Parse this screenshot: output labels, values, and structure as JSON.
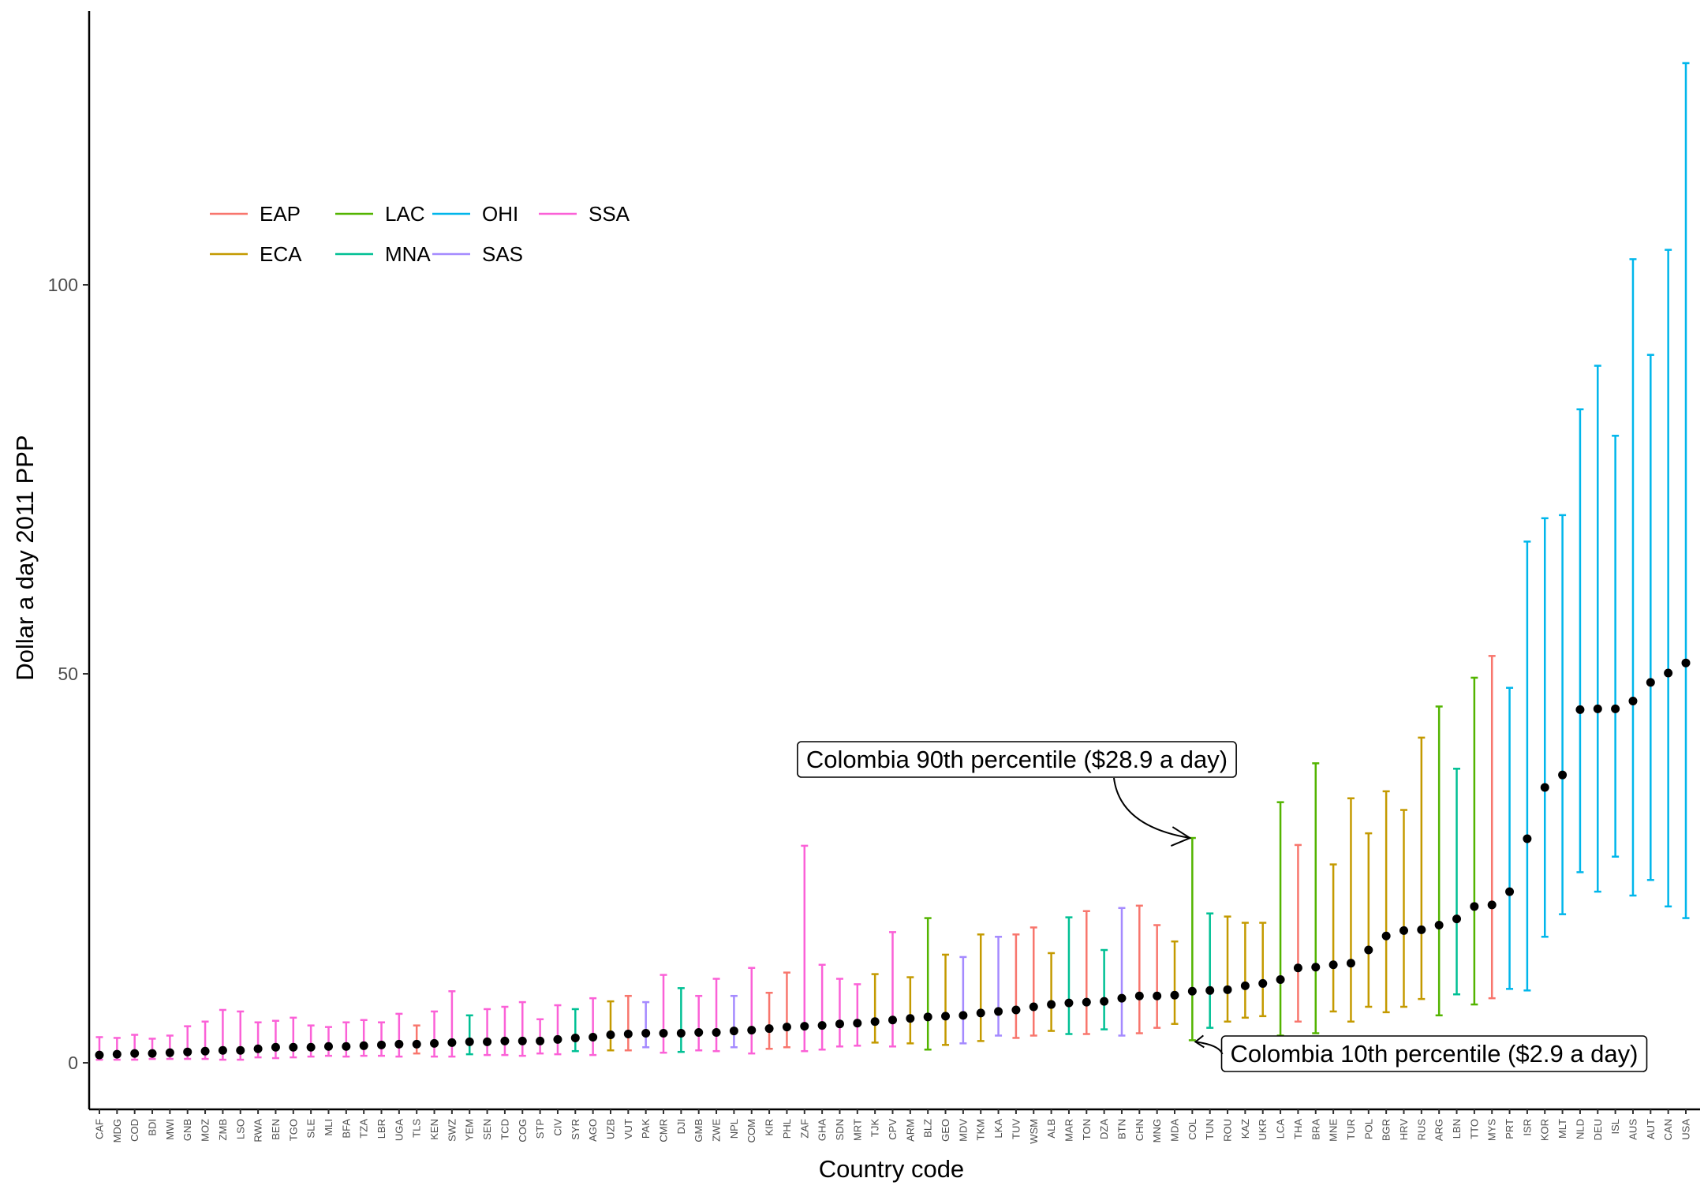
{
  "chart_data": {
    "type": "errorbar",
    "xlabel": "Country code",
    "ylabel": "Dollar a day 2011 PPP",
    "ylim": [
      -6,
      134
    ],
    "yticks": [
      0,
      50,
      100
    ],
    "grid": false,
    "legend_position": "top-left",
    "colors": {
      "EAP": "#F8766D",
      "ECA": "#C49A00",
      "LAC": "#53B400",
      "MNA": "#00C094",
      "OHI": "#00B6EB",
      "SAS": "#A58AFF",
      "SSA": "#FB61D7"
    },
    "legend": [
      {
        "region": "EAP",
        "label": "EAP"
      },
      {
        "region": "LAC",
        "label": "LAC"
      },
      {
        "region": "OHI",
        "label": "OHI"
      },
      {
        "region": "SSA",
        "label": "SSA"
      },
      {
        "region": "ECA",
        "label": "ECA"
      },
      {
        "region": "MNA",
        "label": "MNA"
      },
      {
        "region": "SAS",
        "label": "SAS"
      }
    ],
    "points": [
      {
        "code": "CAF",
        "region": "SSA",
        "median": 1.0,
        "low": 0.4,
        "high": 3.3
      },
      {
        "code": "MDG",
        "region": "SSA",
        "median": 1.1,
        "low": 0.4,
        "high": 3.2
      },
      {
        "code": "COD",
        "region": "SSA",
        "median": 1.2,
        "low": 0.4,
        "high": 3.6
      },
      {
        "code": "BDI",
        "region": "SSA",
        "median": 1.2,
        "low": 0.5,
        "high": 3.1
      },
      {
        "code": "MWI",
        "region": "SSA",
        "median": 1.3,
        "low": 0.5,
        "high": 3.5
      },
      {
        "code": "GNB",
        "region": "SSA",
        "median": 1.4,
        "low": 0.5,
        "high": 4.7
      },
      {
        "code": "MOZ",
        "region": "SSA",
        "median": 1.5,
        "low": 0.5,
        "high": 5.3
      },
      {
        "code": "ZMB",
        "region": "SSA",
        "median": 1.6,
        "low": 0.4,
        "high": 6.8
      },
      {
        "code": "LSO",
        "region": "SSA",
        "median": 1.6,
        "low": 0.4,
        "high": 6.6
      },
      {
        "code": "RWA",
        "region": "SSA",
        "median": 1.8,
        "low": 0.7,
        "high": 5.2
      },
      {
        "code": "BEN",
        "region": "SSA",
        "median": 2.0,
        "low": 0.6,
        "high": 5.4
      },
      {
        "code": "TGO",
        "region": "SSA",
        "median": 2.0,
        "low": 0.7,
        "high": 5.8
      },
      {
        "code": "SLE",
        "region": "SSA",
        "median": 2.0,
        "low": 0.8,
        "high": 4.8
      },
      {
        "code": "MLI",
        "region": "SSA",
        "median": 2.1,
        "low": 0.9,
        "high": 4.6
      },
      {
        "code": "BFA",
        "region": "SSA",
        "median": 2.1,
        "low": 0.8,
        "high": 5.2
      },
      {
        "code": "TZA",
        "region": "SSA",
        "median": 2.2,
        "low": 0.9,
        "high": 5.5
      },
      {
        "code": "LBR",
        "region": "SSA",
        "median": 2.3,
        "low": 0.9,
        "high": 5.2
      },
      {
        "code": "UGA",
        "region": "SSA",
        "median": 2.4,
        "low": 0.8,
        "high": 6.3
      },
      {
        "code": "TLS",
        "region": "EAP",
        "median": 2.4,
        "low": 1.2,
        "high": 4.8
      },
      {
        "code": "KEN",
        "region": "SSA",
        "median": 2.5,
        "low": 0.8,
        "high": 6.6
      },
      {
        "code": "SWZ",
        "region": "SSA",
        "median": 2.6,
        "low": 0.8,
        "high": 9.2
      },
      {
        "code": "YEM",
        "region": "MNA",
        "median": 2.7,
        "low": 1.1,
        "high": 6.1
      },
      {
        "code": "SEN",
        "region": "SSA",
        "median": 2.7,
        "low": 1.0,
        "high": 6.9
      },
      {
        "code": "TCD",
        "region": "SSA",
        "median": 2.8,
        "low": 1.0,
        "high": 7.2
      },
      {
        "code": "COG",
        "region": "SSA",
        "median": 2.8,
        "low": 0.9,
        "high": 7.8
      },
      {
        "code": "STP",
        "region": "SSA",
        "median": 2.8,
        "low": 1.2,
        "high": 5.6
      },
      {
        "code": "CIV",
        "region": "SSA",
        "median": 3.0,
        "low": 1.1,
        "high": 7.4
      },
      {
        "code": "SYR",
        "region": "MNA",
        "median": 3.2,
        "low": 1.5,
        "high": 6.9
      },
      {
        "code": "AGO",
        "region": "SSA",
        "median": 3.3,
        "low": 1.0,
        "high": 8.3
      },
      {
        "code": "UZB",
        "region": "ECA",
        "median": 3.6,
        "low": 1.6,
        "high": 7.9
      },
      {
        "code": "VUT",
        "region": "EAP",
        "median": 3.7,
        "low": 1.6,
        "high": 8.6
      },
      {
        "code": "PAK",
        "region": "SAS",
        "median": 3.8,
        "low": 2.0,
        "high": 7.8
      },
      {
        "code": "CMR",
        "region": "SSA",
        "median": 3.8,
        "low": 1.3,
        "high": 11.3
      },
      {
        "code": "DJI",
        "region": "MNA",
        "median": 3.8,
        "low": 1.4,
        "high": 9.6
      },
      {
        "code": "GMB",
        "region": "SSA",
        "median": 3.9,
        "low": 1.6,
        "high": 8.6
      },
      {
        "code": "ZWE",
        "region": "SSA",
        "median": 3.9,
        "low": 1.5,
        "high": 10.8
      },
      {
        "code": "NPL",
        "region": "SAS",
        "median": 4.1,
        "low": 2.0,
        "high": 8.6
      },
      {
        "code": "COM",
        "region": "SSA",
        "median": 4.2,
        "low": 1.2,
        "high": 12.2
      },
      {
        "code": "KIR",
        "region": "EAP",
        "median": 4.4,
        "low": 1.8,
        "high": 9.0
      },
      {
        "code": "PHL",
        "region": "EAP",
        "median": 4.6,
        "low": 2.0,
        "high": 11.6
      },
      {
        "code": "ZAF",
        "region": "SSA",
        "median": 4.7,
        "low": 1.5,
        "high": 27.9
      },
      {
        "code": "GHA",
        "region": "SSA",
        "median": 4.8,
        "low": 1.7,
        "high": 12.6
      },
      {
        "code": "SDN",
        "region": "SSA",
        "median": 5.0,
        "low": 2.1,
        "high": 10.8
      },
      {
        "code": "MRT",
        "region": "SSA",
        "median": 5.1,
        "low": 2.2,
        "high": 10.1
      },
      {
        "code": "TJK",
        "region": "ECA",
        "median": 5.3,
        "low": 2.6,
        "high": 11.4
      },
      {
        "code": "CPV",
        "region": "SSA",
        "median": 5.5,
        "low": 2.1,
        "high": 16.8
      },
      {
        "code": "ARM",
        "region": "ECA",
        "median": 5.7,
        "low": 2.5,
        "high": 11.0
      },
      {
        "code": "BLZ",
        "region": "LAC",
        "median": 5.9,
        "low": 1.7,
        "high": 18.6
      },
      {
        "code": "GEO",
        "region": "ECA",
        "median": 6.0,
        "low": 2.3,
        "high": 13.9
      },
      {
        "code": "MDV",
        "region": "SAS",
        "median": 6.1,
        "low": 2.5,
        "high": 13.6
      },
      {
        "code": "TKM",
        "region": "ECA",
        "median": 6.4,
        "low": 2.8,
        "high": 16.5
      },
      {
        "code": "LKA",
        "region": "SAS",
        "median": 6.6,
        "low": 3.5,
        "high": 16.2
      },
      {
        "code": "TUV",
        "region": "EAP",
        "median": 6.8,
        "low": 3.2,
        "high": 16.5
      },
      {
        "code": "WSM",
        "region": "EAP",
        "median": 7.2,
        "low": 3.5,
        "high": 17.4
      },
      {
        "code": "ALB",
        "region": "ECA",
        "median": 7.5,
        "low": 4.1,
        "high": 14.1
      },
      {
        "code": "MAR",
        "region": "MNA",
        "median": 7.7,
        "low": 3.7,
        "high": 18.7
      },
      {
        "code": "TON",
        "region": "EAP",
        "median": 7.8,
        "low": 3.7,
        "high": 19.5
      },
      {
        "code": "DZA",
        "region": "MNA",
        "median": 7.9,
        "low": 4.3,
        "high": 14.5
      },
      {
        "code": "BTN",
        "region": "SAS",
        "median": 8.3,
        "low": 3.5,
        "high": 19.9
      },
      {
        "code": "CHN",
        "region": "EAP",
        "median": 8.6,
        "low": 3.8,
        "high": 20.2
      },
      {
        "code": "MNG",
        "region": "EAP",
        "median": 8.6,
        "low": 4.5,
        "high": 17.7
      },
      {
        "code": "MDA",
        "region": "ECA",
        "median": 8.7,
        "low": 5.0,
        "high": 15.6
      },
      {
        "code": "COL",
        "region": "LAC",
        "median": 9.2,
        "low": 2.9,
        "high": 28.9
      },
      {
        "code": "TUN",
        "region": "MNA",
        "median": 9.3,
        "low": 4.5,
        "high": 19.2
      },
      {
        "code": "ROU",
        "region": "ECA",
        "median": 9.4,
        "low": 5.3,
        "high": 18.8
      },
      {
        "code": "KAZ",
        "region": "ECA",
        "median": 9.9,
        "low": 5.8,
        "high": 18.0
      },
      {
        "code": "UKR",
        "region": "ECA",
        "median": 10.2,
        "low": 6.0,
        "high": 18.0
      },
      {
        "code": "LCA",
        "region": "LAC",
        "median": 10.7,
        "low": 3.5,
        "high": 33.5
      },
      {
        "code": "THA",
        "region": "EAP",
        "median": 12.2,
        "low": 5.3,
        "high": 28.0
      },
      {
        "code": "BRA",
        "region": "LAC",
        "median": 12.3,
        "low": 3.8,
        "high": 38.5
      },
      {
        "code": "MNE",
        "region": "ECA",
        "median": 12.6,
        "low": 6.6,
        "high": 25.5
      },
      {
        "code": "TUR",
        "region": "ECA",
        "median": 12.8,
        "low": 5.3,
        "high": 34.0
      },
      {
        "code": "POL",
        "region": "ECA",
        "median": 14.5,
        "low": 7.2,
        "high": 29.5
      },
      {
        "code": "BGR",
        "region": "ECA",
        "median": 16.3,
        "low": 6.5,
        "high": 34.9
      },
      {
        "code": "HRV",
        "region": "ECA",
        "median": 17.0,
        "low": 7.2,
        "high": 32.5
      },
      {
        "code": "RUS",
        "region": "ECA",
        "median": 17.1,
        "low": 8.2,
        "high": 41.8
      },
      {
        "code": "ARG",
        "region": "LAC",
        "median": 17.7,
        "low": 6.1,
        "high": 45.8
      },
      {
        "code": "LBN",
        "region": "MNA",
        "median": 18.5,
        "low": 8.8,
        "high": 37.8
      },
      {
        "code": "TTO",
        "region": "LAC",
        "median": 20.1,
        "low": 7.5,
        "high": 49.5
      },
      {
        "code": "MYS",
        "region": "EAP",
        "median": 20.3,
        "low": 8.3,
        "high": 52.3
      },
      {
        "code": "PRT",
        "region": "OHI",
        "median": 22.0,
        "low": 9.5,
        "high": 48.2
      },
      {
        "code": "ISR",
        "region": "OHI",
        "median": 28.8,
        "low": 9.3,
        "high": 67.0
      },
      {
        "code": "KOR",
        "region": "OHI",
        "median": 35.4,
        "low": 16.2,
        "high": 70.0
      },
      {
        "code": "MLT",
        "region": "OHI",
        "median": 37.0,
        "low": 19.1,
        "high": 70.4
      },
      {
        "code": "NLD",
        "region": "OHI",
        "median": 45.4,
        "low": 24.5,
        "high": 84.0
      },
      {
        "code": "DEU",
        "region": "OHI",
        "median": 45.5,
        "low": 22.0,
        "high": 89.6
      },
      {
        "code": "ISL",
        "region": "OHI",
        "median": 45.5,
        "low": 26.5,
        "high": 80.6
      },
      {
        "code": "AUS",
        "region": "OHI",
        "median": 46.5,
        "low": 21.5,
        "high": 103.3
      },
      {
        "code": "AUT",
        "region": "OHI",
        "median": 48.9,
        "low": 23.5,
        "high": 91.0
      },
      {
        "code": "CAN",
        "region": "OHI",
        "median": 50.1,
        "low": 20.1,
        "high": 104.5
      },
      {
        "code": "USA",
        "region": "OHI",
        "median": 51.4,
        "low": 18.6,
        "high": 128.5
      }
    ],
    "annotations": [
      {
        "id": "col-p90",
        "text": "Colombia 90th percentile ($28.9 a day)",
        "target_code": "COL",
        "target_value": 28.9
      },
      {
        "id": "col-p10",
        "text": "Colombia 10th percentile ($2.9 a day)",
        "target_code": "COL",
        "target_value": 2.9
      }
    ]
  }
}
